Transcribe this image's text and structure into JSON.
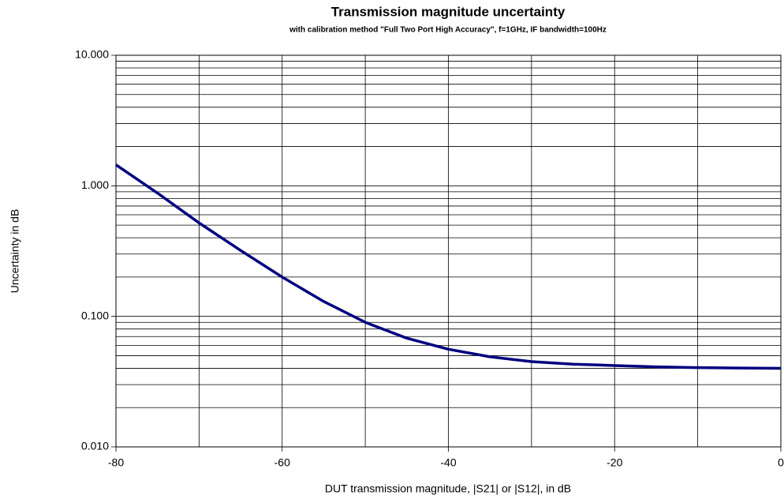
{
  "chart_data": {
    "type": "line",
    "title": "Transmission magnitude uncertainty",
    "subtitle": "with calibration method \"Full Two Port High Accuracy\", f=1GHz, IF bandwidth=100Hz",
    "x_label": "DUT transmission magnitude, |S21| or |S12|, in dB",
    "y_label": "Uncertainty in dB",
    "x": [
      -80,
      -75,
      -70,
      -65,
      -60,
      -55,
      -50,
      -45,
      -40,
      -35,
      -30,
      -25,
      -20,
      -15,
      -10,
      -5,
      0
    ],
    "series": [
      {
        "name": "Uncertainty",
        "color": "#000080",
        "values": [
          1.45,
          0.88,
          0.52,
          0.32,
          0.2,
          0.13,
          0.09,
          0.068,
          0.056,
          0.049,
          0.045,
          0.043,
          0.042,
          0.041,
          0.0405,
          0.0402,
          0.04
        ]
      }
    ],
    "xlim": [
      -80,
      0
    ],
    "xticks": [
      -80,
      -60,
      -40,
      -20,
      0
    ],
    "x_minor_ticks": [
      -70,
      -50,
      -30,
      -10
    ],
    "ylim": [
      0.01,
      10
    ],
    "log_y": true,
    "grid": true,
    "yticks": [
      {
        "value": 0.01,
        "label": "0.010"
      },
      {
        "value": 0.1,
        "label": "0.100"
      },
      {
        "value": 1,
        "label": "1.000"
      },
      {
        "value": 10,
        "label": "10.000"
      }
    ],
    "y_minor_ticks": [
      0.02,
      0.03,
      0.04,
      0.05,
      0.06,
      0.07,
      0.08,
      0.09,
      0.2,
      0.3,
      0.4,
      0.5,
      0.6,
      0.7,
      0.8,
      0.9,
      2,
      3,
      4,
      5,
      6,
      7,
      8,
      9
    ]
  }
}
